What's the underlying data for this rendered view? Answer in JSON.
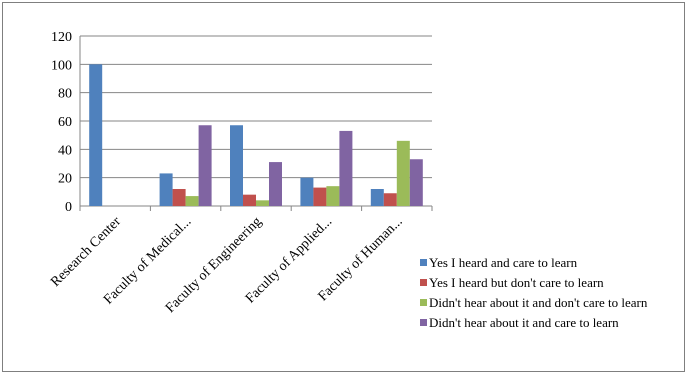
{
  "chart_data": {
    "type": "bar",
    "categories": [
      "Research Center",
      "Faculty of Medical...",
      "Faculty of Engineering",
      "Faculty of Applied...",
      "Faculty of Human..."
    ],
    "series": [
      {
        "name": "Yes I heard and care to learn",
        "color": "#4f81bd",
        "values": [
          100,
          23,
          57,
          20,
          12
        ]
      },
      {
        "name": "Yes I heard but don't care to learn",
        "color": "#c0504d",
        "values": [
          0,
          12,
          8,
          13,
          9
        ]
      },
      {
        "name": "Didn't hear about it and don't care to learn",
        "color": "#9bbb59",
        "values": [
          0,
          7,
          4,
          14,
          46
        ]
      },
      {
        "name": "Didn't hear about it and care to learn",
        "color": "#8064a2",
        "values": [
          0,
          57,
          31,
          53,
          33
        ]
      }
    ],
    "yticks": [
      0,
      20,
      40,
      60,
      80,
      100,
      120
    ],
    "ylim": [
      0,
      120
    ],
    "grid": true,
    "legend": "right-bottom"
  }
}
